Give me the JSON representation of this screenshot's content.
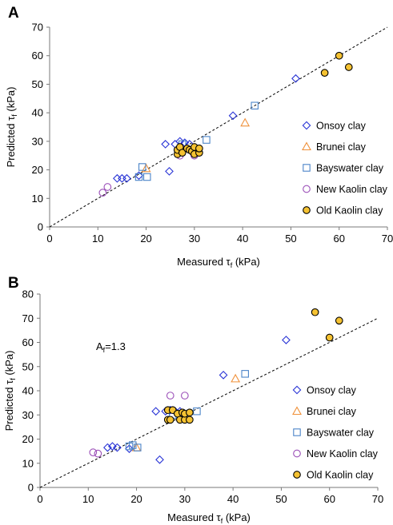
{
  "series_styles": [
    {
      "name": "Onsoy clay",
      "marker": "diamond",
      "stroke": "#2a35d6",
      "fill": "none"
    },
    {
      "name": "Brunei clay",
      "marker": "triangle",
      "stroke": "#f0913a",
      "fill": "none"
    },
    {
      "name": "Bayswater clay",
      "marker": "square",
      "stroke": "#4b84c8",
      "fill": "none"
    },
    {
      "name": "New Kaolin clay",
      "marker": "circle",
      "stroke": "#9b4fb8",
      "fill": "none"
    },
    {
      "name": "Old Kaolin clay",
      "marker": "circle",
      "stroke": "#000000",
      "fill": "#f5c232"
    }
  ],
  "chart_data": [
    {
      "panel_label": "A",
      "type": "scatter",
      "xlabel_main": "Measured τ",
      "xlabel_sub": "f",
      "xlabel_unit": " (kPa)",
      "ylabel_main": "Predicted τ",
      "ylabel_sub": "f",
      "ylabel_unit": " (kPa)",
      "xlim": [
        0,
        70
      ],
      "ylim": [
        0,
        70
      ],
      "xticks": [
        "0",
        "10",
        "20",
        "30",
        "40",
        "50",
        "60",
        "70"
      ],
      "yticks": [
        "0",
        "10",
        "20",
        "30",
        "40",
        "50",
        "60",
        "70"
      ],
      "reference_line": {
        "slope": 1,
        "style": "dashed"
      },
      "legend_position": "lower-right",
      "annotation": null,
      "series": [
        {
          "name": "Onsoy clay",
          "points": [
            [
              14,
              17
            ],
            [
              15,
              17
            ],
            [
              16,
              17
            ],
            [
              18.5,
              18
            ],
            [
              24,
              29
            ],
            [
              24.8,
              19.5
            ],
            [
              26,
              29
            ],
            [
              27,
              30
            ],
            [
              28,
              29.5
            ],
            [
              29,
              29
            ],
            [
              38,
              39
            ],
            [
              51,
              52
            ]
          ]
        },
        {
          "name": "Brunei clay",
          "points": [
            [
              20,
              20.5
            ],
            [
              40.5,
              36.5
            ]
          ]
        },
        {
          "name": "Bayswater clay",
          "points": [
            [
              18.5,
              17.5
            ],
            [
              19.2,
              21
            ],
            [
              20.2,
              17.5
            ],
            [
              27.5,
              29
            ],
            [
              32.5,
              30.5
            ],
            [
              42.5,
              42.5
            ]
          ]
        },
        {
          "name": "New Kaolin clay",
          "points": [
            [
              11,
              12
            ],
            [
              12,
              14
            ],
            [
              27,
              25
            ],
            [
              30,
              25
            ]
          ]
        },
        {
          "name": "Old Kaolin clay",
          "points": [
            [
              26.5,
              25.5
            ],
            [
              26.5,
              27
            ],
            [
              27,
              28
            ],
            [
              27.5,
              26
            ],
            [
              28.5,
              27.5
            ],
            [
              29,
              27
            ],
            [
              29.5,
              26.5
            ],
            [
              30,
              25.5
            ],
            [
              30,
              28
            ],
            [
              31,
              26
            ],
            [
              31,
              27.5
            ],
            [
              57,
              54
            ],
            [
              60,
              60
            ],
            [
              62,
              56
            ]
          ]
        }
      ]
    },
    {
      "panel_label": "B",
      "type": "scatter",
      "xlabel_main": "Measured τ",
      "xlabel_sub": "f",
      "xlabel_unit": " (kPa)",
      "ylabel_main": "Predicted τ",
      "ylabel_sub": "f",
      "ylabel_unit": " (kPa)",
      "xlim": [
        0,
        70
      ],
      "ylim": [
        0,
        80
      ],
      "xticks": [
        "0",
        "10",
        "20",
        "30",
        "40",
        "50",
        "60",
        "70"
      ],
      "yticks": [
        "0",
        "10",
        "20",
        "30",
        "40",
        "50",
        "60",
        "70",
        "80"
      ],
      "reference_line": {
        "slope": 1,
        "style": "dashed"
      },
      "legend_position": "lower-right",
      "annotation": {
        "main": "A",
        "sub": "f",
        "rest": "=1.3"
      },
      "series": [
        {
          "name": "Onsoy clay",
          "points": [
            [
              14,
              16.5
            ],
            [
              15,
              17
            ],
            [
              16,
              16.5
            ],
            [
              18.5,
              16
            ],
            [
              24,
              31.5
            ],
            [
              24.8,
              11.5
            ],
            [
              26,
              31.5
            ],
            [
              27,
              32
            ],
            [
              28,
              31.5
            ],
            [
              29,
              31.5
            ],
            [
              38,
              46.5
            ],
            [
              51,
              61
            ]
          ]
        },
        {
          "name": "Brunei clay",
          "points": [
            [
              20,
              16.5
            ],
            [
              40.5,
              45
            ]
          ]
        },
        {
          "name": "Bayswater clay",
          "points": [
            [
              18.5,
              17
            ],
            [
              19.2,
              17.5
            ],
            [
              20.2,
              16.5
            ],
            [
              27.5,
              30
            ],
            [
              32.5,
              31.5
            ],
            [
              42.5,
              47
            ]
          ]
        },
        {
          "name": "New Kaolin clay",
          "points": [
            [
              11,
              14.5
            ],
            [
              12,
              14
            ],
            [
              27,
              38
            ],
            [
              30,
              38
            ]
          ]
        },
        {
          "name": "Old Kaolin clay",
          "points": [
            [
              26.5,
              28
            ],
            [
              26.5,
              32
            ],
            [
              27,
              28
            ],
            [
              27.5,
              32
            ],
            [
              28.5,
              30.5
            ],
            [
              29,
              28
            ],
            [
              29.5,
              31
            ],
            [
              30,
              28
            ],
            [
              30,
              30.5
            ],
            [
              31,
              28
            ],
            [
              31,
              31
            ],
            [
              57,
              72.5
            ],
            [
              60,
              62
            ],
            [
              62,
              69
            ]
          ]
        }
      ]
    }
  ]
}
